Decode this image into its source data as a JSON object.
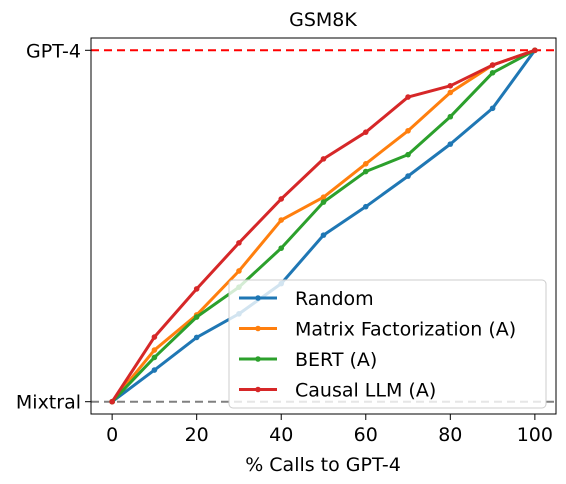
{
  "chart_data": {
    "type": "line",
    "title": "GSM8K",
    "xlabel": "% Calls to GPT-4",
    "ylabel": "",
    "xlim": [
      -5,
      105
    ],
    "ylim": [
      -0.035,
      1.035
    ],
    "x": [
      0,
      10,
      20,
      30,
      40,
      50,
      60,
      70,
      80,
      90,
      100
    ],
    "xticks": [
      0,
      20,
      40,
      60,
      80,
      100
    ],
    "yticks": [
      {
        "value": 1,
        "label": "GPT-4"
      },
      {
        "value": 0,
        "label": "Mixtral"
      }
    ],
    "reference_lines": [
      {
        "label": "GPT-4",
        "value": 1,
        "color": "#ff0000",
        "style": "dashed"
      },
      {
        "label": "Mixtral",
        "value": 0,
        "color": "#808080",
        "style": "dashed"
      }
    ],
    "series": [
      {
        "name": "Random",
        "color": "#1f77b4",
        "values": [
          0,
          0.09,
          0.183,
          0.25,
          0.336,
          0.474,
          0.555,
          0.642,
          0.733,
          0.835,
          1
        ]
      },
      {
        "name": "Matrix Factorization (A)",
        "color": "#ff7f0e",
        "values": [
          0,
          0.147,
          0.247,
          0.372,
          0.517,
          0.582,
          0.677,
          0.771,
          0.88,
          0.958,
          1
        ]
      },
      {
        "name": "BERT (A)",
        "color": "#2ca02c",
        "values": [
          0,
          0.126,
          0.241,
          0.326,
          0.437,
          0.568,
          0.655,
          0.703,
          0.811,
          0.936,
          1
        ]
      },
      {
        "name": "Causal LLM (A)",
        "color": "#d62728",
        "values": [
          0,
          0.184,
          0.321,
          0.452,
          0.577,
          0.691,
          0.767,
          0.867,
          0.899,
          0.958,
          1
        ]
      }
    ],
    "grid": false,
    "legend_position": "lower right"
  }
}
